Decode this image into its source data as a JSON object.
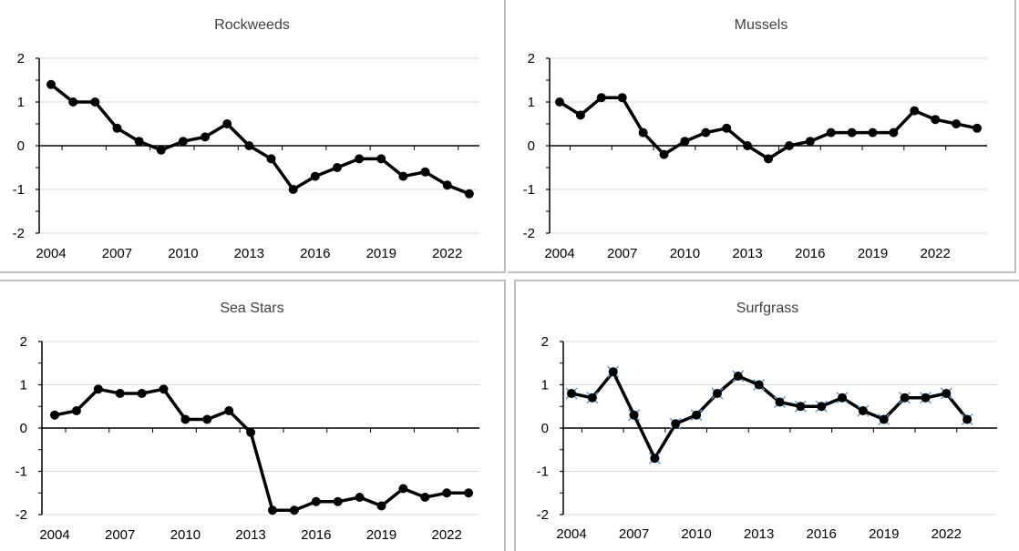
{
  "chart_data": [
    {
      "type": "line",
      "title": "Rockweeds",
      "xlabel": "",
      "ylabel": "",
      "xlim": [
        2004,
        2023
      ],
      "ylim": [
        -2,
        2
      ],
      "x_ticks": [
        2004,
        2007,
        2010,
        2013,
        2016,
        2019,
        2022
      ],
      "y_ticks": [
        -2,
        -1,
        0,
        1,
        2
      ],
      "grid": true,
      "marker": "circle",
      "line_color": "#000000",
      "x": [
        2004,
        2005,
        2006,
        2007,
        2008,
        2009,
        2010,
        2011,
        2012,
        2013,
        2014,
        2015,
        2016,
        2017,
        2018,
        2019,
        2020,
        2021,
        2022,
        2023
      ],
      "series": [
        {
          "values": [
            1.4,
            1.0,
            1.0,
            0.4,
            0.1,
            -0.1,
            0.1,
            0.2,
            0.5,
            0.0,
            -0.3,
            -1.0,
            -0.7,
            -0.5,
            -0.3,
            -0.3,
            -0.7,
            -0.6,
            -0.9,
            -1.1
          ]
        }
      ]
    },
    {
      "type": "line",
      "title": "Mussels",
      "xlabel": "",
      "ylabel": "",
      "xlim": [
        2004,
        2024
      ],
      "ylim": [
        -2,
        2
      ],
      "x_ticks": [
        2004,
        2007,
        2010,
        2013,
        2016,
        2019,
        2022
      ],
      "y_ticks": [
        -2,
        -1,
        0,
        1,
        2
      ],
      "grid": true,
      "marker": "circle",
      "line_color": "#000000",
      "x": [
        2004,
        2005,
        2006,
        2007,
        2008,
        2009,
        2010,
        2011,
        2012,
        2013,
        2014,
        2015,
        2016,
        2017,
        2018,
        2019,
        2020,
        2021,
        2022,
        2023,
        2024
      ],
      "series": [
        {
          "values": [
            1.0,
            0.7,
            1.1,
            1.1,
            0.3,
            -0.2,
            0.1,
            0.3,
            0.4,
            0.0,
            -0.3,
            0.0,
            0.1,
            0.3,
            0.3,
            0.3,
            0.3,
            0.8,
            0.6,
            0.5,
            0.4
          ]
        }
      ]
    },
    {
      "type": "line",
      "title": "Sea Stars",
      "xlabel": "",
      "ylabel": "",
      "xlim": [
        2004,
        2023
      ],
      "ylim": [
        -2,
        2
      ],
      "x_ticks": [
        2004,
        2007,
        2010,
        2013,
        2016,
        2019,
        2022
      ],
      "y_ticks": [
        -2,
        -1,
        0,
        1,
        2
      ],
      "grid": true,
      "marker": "circle",
      "line_color": "#000000",
      "x": [
        2004,
        2005,
        2006,
        2007,
        2008,
        2009,
        2010,
        2011,
        2012,
        2013,
        2014,
        2015,
        2016,
        2017,
        2018,
        2019,
        2020,
        2021,
        2022,
        2023
      ],
      "series": [
        {
          "values": [
            0.3,
            0.4,
            0.9,
            0.8,
            0.8,
            0.9,
            0.2,
            0.2,
            0.4,
            -0.1,
            -1.9,
            -1.9,
            -1.7,
            -1.7,
            -1.6,
            -1.8,
            -1.4,
            -1.6,
            -1.5,
            -1.5
          ]
        }
      ]
    },
    {
      "type": "line",
      "title": "Surfgrass",
      "xlabel": "",
      "ylabel": "",
      "xlim": [
        2004,
        2023
      ],
      "ylim": [
        -2,
        2
      ],
      "x_ticks": [
        2004,
        2007,
        2010,
        2013,
        2016,
        2019,
        2022
      ],
      "y_ticks": [
        -2,
        -1,
        0,
        1,
        2
      ],
      "grid": true,
      "marker": "circle",
      "marker_overlay": "x",
      "overlay_color": "#5b9bd5",
      "line_color": "#000000",
      "x": [
        2004,
        2005,
        2006,
        2007,
        2008,
        2009,
        2010,
        2011,
        2012,
        2013,
        2014,
        2015,
        2016,
        2017,
        2018,
        2019,
        2020,
        2021,
        2022,
        2023
      ],
      "series": [
        {
          "values": [
            0.8,
            0.7,
            1.3,
            0.3,
            -0.7,
            0.1,
            0.3,
            0.8,
            1.2,
            1.0,
            0.6,
            0.5,
            0.5,
            0.7,
            0.4,
            0.2,
            0.7,
            0.7,
            0.8,
            0.2
          ]
        }
      ]
    }
  ]
}
